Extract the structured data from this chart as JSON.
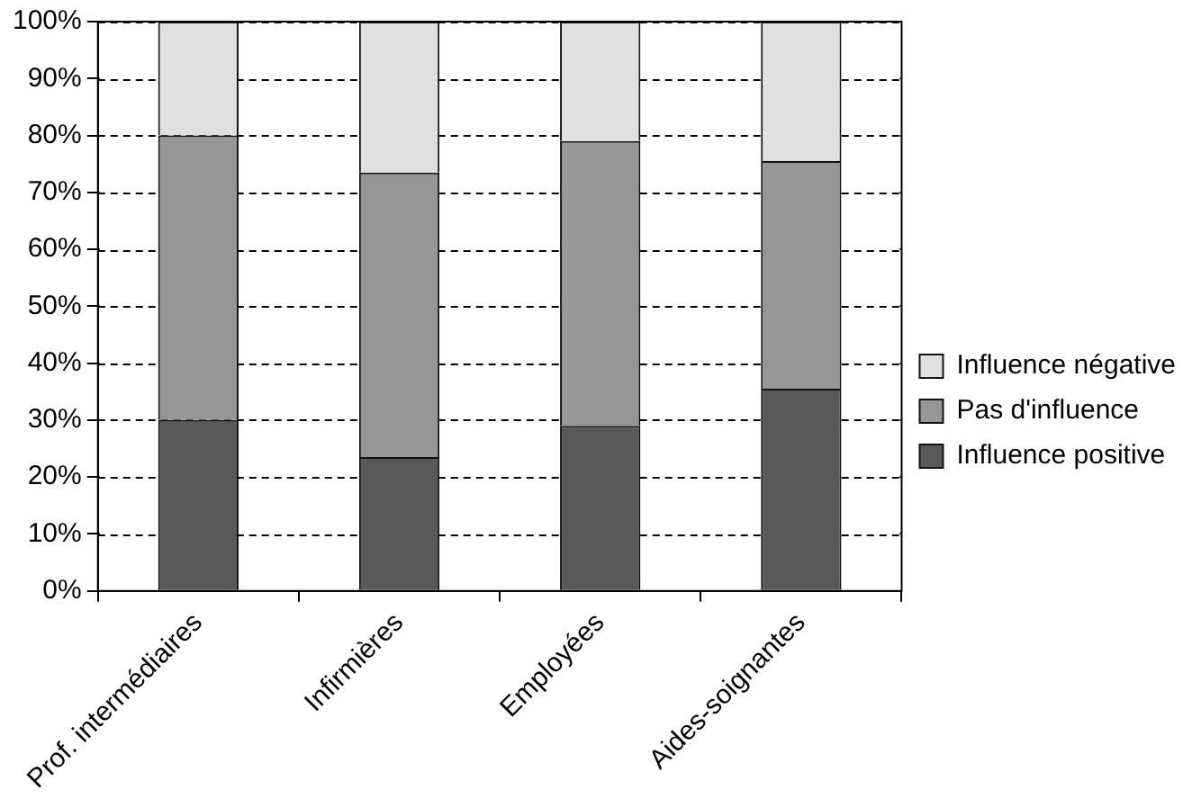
{
  "chart_data": {
    "type": "bar",
    "stacked": true,
    "categories": [
      "Prof. intermédiaires",
      "Infirmières",
      "Employées",
      "Aides-soignantes"
    ],
    "series": [
      {
        "name": "Influence positive",
        "color": "#595959",
        "values": [
          30,
          23.5,
          29,
          35.5
        ]
      },
      {
        "name": "Pas d'influence",
        "color": "#969696",
        "values": [
          50,
          50,
          50,
          40
        ]
      },
      {
        "name": "Influence négative",
        "color": "#e0e0e0",
        "values": [
          20,
          26.5,
          21,
          24.5
        ]
      }
    ],
    "ylim": [
      0,
      100
    ],
    "yticks": [
      {
        "value": 0,
        "label": "0%"
      },
      {
        "value": 10,
        "label": "10%"
      },
      {
        "value": 20,
        "label": "20%"
      },
      {
        "value": 30,
        "label": "30%"
      },
      {
        "value": 40,
        "label": "40%"
      },
      {
        "value": 50,
        "label": "50%"
      },
      {
        "value": 60,
        "label": "60%"
      },
      {
        "value": 70,
        "label": "70%"
      },
      {
        "value": 80,
        "label": "80%"
      },
      {
        "value": 90,
        "label": "90%"
      },
      {
        "value": 100,
        "label": "100%"
      }
    ],
    "grid": "y",
    "legend": "right"
  }
}
